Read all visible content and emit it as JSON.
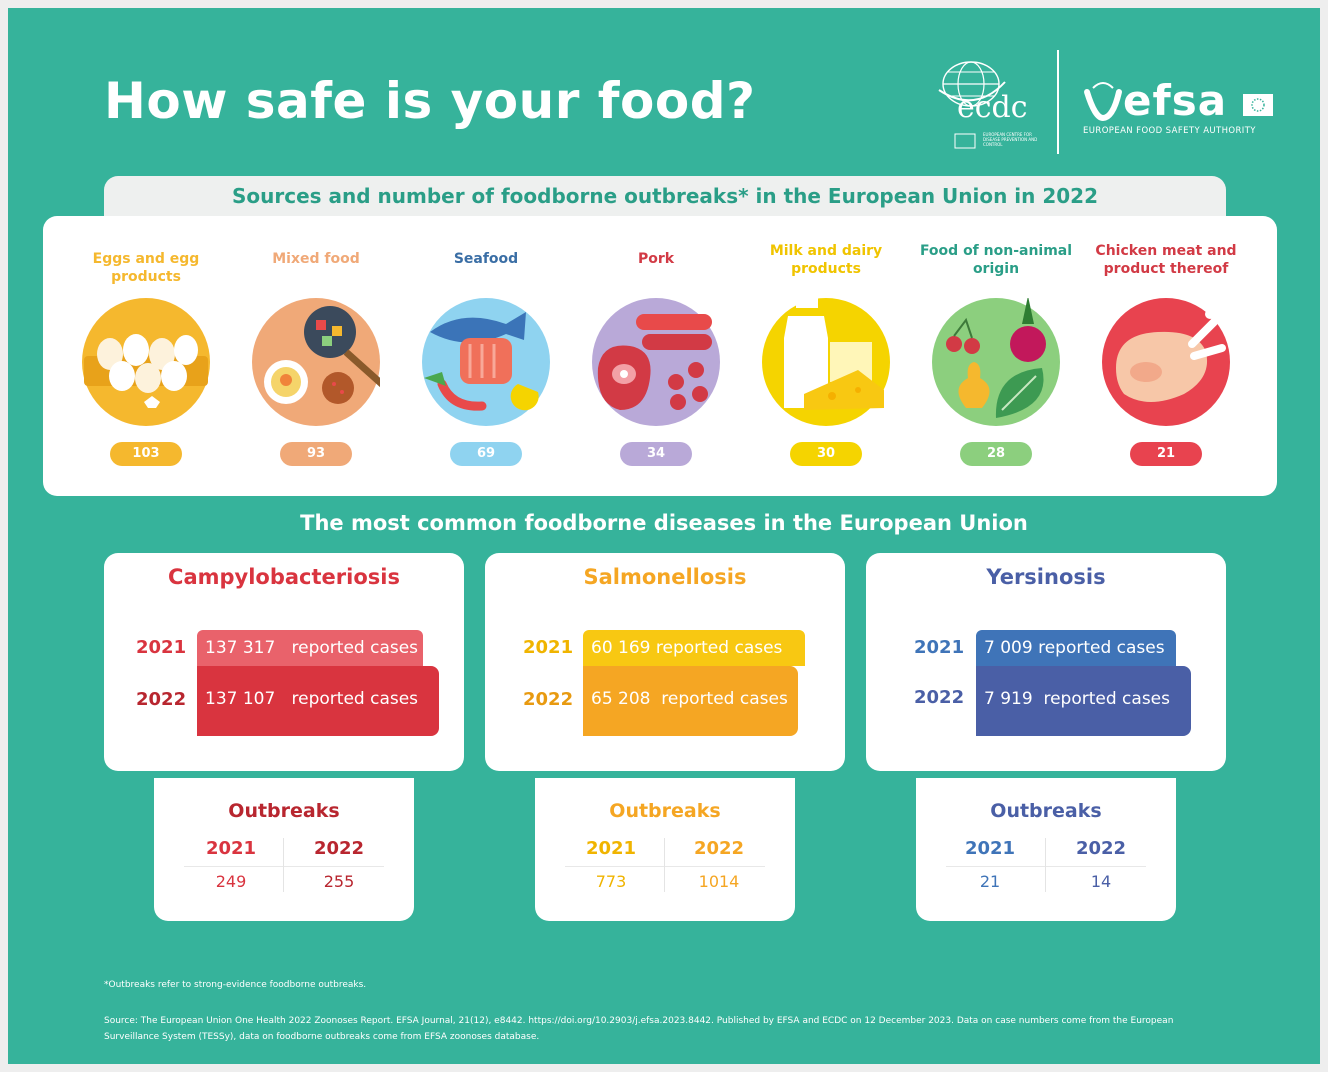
{
  "header": {
    "title": "How safe is your food?",
    "ecdc_logo_text": "ecdc",
    "ecdc_logo_subtext": "EUROPEAN CENTRE FOR DISEASE PREVENTION AND CONTROL",
    "efsa_logo_text": "efsa",
    "efsa_logo_subtext": "EUROPEAN FOOD SAFETY AUTHORITY"
  },
  "sources": {
    "title": "Sources and number of foodborne outbreaks* in the European Union in 2022",
    "items": [
      {
        "label": "Eggs and egg products",
        "count": "103",
        "color": "#f5b82e",
        "icon": "eggs-icon"
      },
      {
        "label": "Mixed food",
        "count": "93",
        "color": "#f0a978",
        "icon": "mixed-food-icon"
      },
      {
        "label": "Seafood",
        "count": "69",
        "color": "#8fd3f0",
        "icon": "seafood-icon"
      },
      {
        "label": "Pork",
        "count": "34",
        "color": "#b9a9d8",
        "icon": "pork-icon"
      },
      {
        "label": "Milk and dairy products",
        "count": "30",
        "color": "#f5d400",
        "icon": "milk-dairy-icon"
      },
      {
        "label": "Food of non-animal origin",
        "count": "28",
        "color": "#8ccf7e",
        "icon": "vegetables-icon"
      },
      {
        "label": "Chicken meat and product thereof",
        "count": "21",
        "color": "#e8434f",
        "icon": "chicken-icon"
      }
    ]
  },
  "diseases": {
    "title": "The most common foodborne diseases in the European Union",
    "items": [
      {
        "name": "Campylobacteriosis",
        "color": "#d9343f",
        "color_light": "#e9626b",
        "cases": [
          {
            "year": "2021",
            "value": "137 317",
            "unit": "reported cases"
          },
          {
            "year": "2022",
            "value": "137 107",
            "unit": "reported cases"
          }
        ],
        "outbreaks_label": "Outbreaks",
        "outbreaks": [
          {
            "year": "2021",
            "value": "249"
          },
          {
            "year": "2022",
            "value": "255"
          }
        ]
      },
      {
        "name": "Salmonellosis",
        "color": "#f5a623",
        "color_light": "#f8c812",
        "cases": [
          {
            "year": "2021",
            "value": "60 169",
            "unit": "reported cases"
          },
          {
            "year": "2022",
            "value": "65 208",
            "unit": "reported cases"
          }
        ],
        "outbreaks_label": "Outbreaks",
        "outbreaks": [
          {
            "year": "2021",
            "value": "773"
          },
          {
            "year": "2022",
            "value": "1014"
          }
        ]
      },
      {
        "name": "Yersinosis",
        "color": "#4a5fa6",
        "color_light": "#3f74b8",
        "cases": [
          {
            "year": "2021",
            "value": "7 009",
            "unit": "reported cases"
          },
          {
            "year": "2022",
            "value": "7 919",
            "unit": "reported cases"
          }
        ],
        "outbreaks_label": "Outbreaks",
        "outbreaks": [
          {
            "year": "2021",
            "value": "21"
          },
          {
            "year": "2022",
            "value": "14"
          }
        ]
      }
    ]
  },
  "footer": {
    "footnote": "*Outbreaks refer to strong-evidence foodborne outbreaks.",
    "source": "Source: The European Union One Health 2022 Zoonoses Report. EFSA Journal, 21(12), e8442. https://doi.org/10.2903/j.efsa.2023.8442. Published by EFSA and ECDC on 12 December 2023. Data on case numbers come from the European Surveillance System (TESSy), data on foodborne outbreaks come from EFSA zoonoses database."
  }
}
